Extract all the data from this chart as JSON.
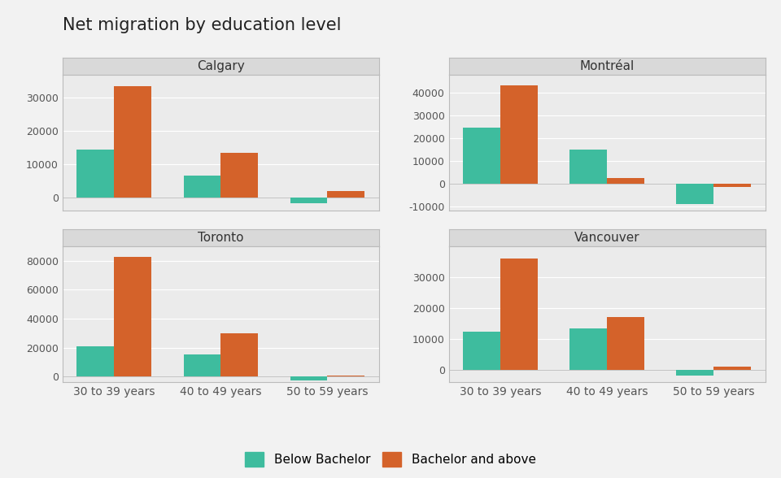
{
  "title": "Net migration by education level",
  "cities": [
    "Calgary",
    "Montréal",
    "Toronto",
    "Vancouver"
  ],
  "age_groups": [
    "30 to 39 years",
    "40 to 49 years",
    "50 to 59 years"
  ],
  "color_below": "#3ebc9e",
  "color_above": "#d4622a",
  "legend_labels": [
    "Below Bachelor",
    "Bachelor and above"
  ],
  "data": {
    "Calgary": {
      "below": [
        14500,
        6500,
        -1800
      ],
      "above": [
        33500,
        13500,
        1800
      ]
    },
    "Montréal": {
      "below": [
        24500,
        15000,
        -9000
      ],
      "above": [
        43000,
        2500,
        -1500
      ]
    },
    "Toronto": {
      "below": [
        21000,
        15500,
        -2500
      ],
      "above": [
        82500,
        30000,
        500
      ]
    },
    "Vancouver": {
      "below": [
        12500,
        13500,
        -1800
      ],
      "above": [
        36000,
        17000,
        1000
      ]
    }
  },
  "ylims": {
    "Calgary": [
      -4000,
      37000
    ],
    "Montréal": [
      -12000,
      48000
    ],
    "Toronto": [
      -4000,
      90000
    ],
    "Vancouver": [
      -4000,
      40000
    ]
  },
  "yticks": {
    "Calgary": [
      0,
      10000,
      20000,
      30000
    ],
    "Montréal": [
      -10000,
      0,
      10000,
      20000,
      30000,
      40000
    ],
    "Toronto": [
      0,
      20000,
      40000,
      60000,
      80000
    ],
    "Vancouver": [
      0,
      10000,
      20000,
      30000
    ]
  },
  "strip_bg": "#d9d9d9",
  "panel_bg": "#ebebeb",
  "fig_bg": "#f2f2f2",
  "plot_area_bg": "#ebebeb",
  "grid_color": "#ffffff",
  "bar_width": 0.35,
  "title_fontsize": 15,
  "legend_fontsize": 11,
  "tick_fontsize": 9,
  "strip_fontsize": 11,
  "xtick_fontsize": 10
}
